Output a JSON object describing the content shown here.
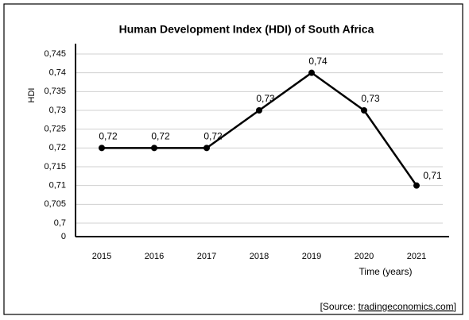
{
  "chart_data": {
    "type": "line",
    "title": "Human Development Index (HDI) of South Africa",
    "y_label": "HDI",
    "x_label": "Time (years)",
    "source": {
      "prefix": "[Source: ",
      "link": "tradingeconomics.com",
      "suffix": "]"
    },
    "categories": [
      "2015",
      "2016",
      "2017",
      "2018",
      "2019",
      "2020",
      "2021"
    ],
    "series": [
      {
        "name": "HDI",
        "color": "#000000",
        "values": [
          0.72,
          0.72,
          0.72,
          0.73,
          0.74,
          0.73,
          0.71
        ],
        "value_labels": [
          "0,72",
          "0,72",
          "0,72",
          "0,73",
          "0,74",
          "0,73",
          "0,71"
        ]
      }
    ],
    "ylim": [
      0,
      0.745
    ],
    "axis_break": true,
    "yticks": [
      0,
      {
        "value": 0.7,
        "label": "0,7"
      },
      {
        "value": 0.705,
        "label": "0,705"
      },
      {
        "value": 0.71,
        "label": "0,71"
      },
      {
        "value": 0.715,
        "label": "0,715"
      },
      {
        "value": 0.72,
        "label": "0,72"
      },
      {
        "value": 0.725,
        "label": "0,725"
      },
      {
        "value": 0.73,
        "label": "0,73"
      },
      {
        "value": 0.735,
        "label": "0,735"
      },
      {
        "value": 0.74,
        "label": "0,74"
      },
      {
        "value": 0.745,
        "label": "0,745"
      }
    ],
    "grid": true
  }
}
